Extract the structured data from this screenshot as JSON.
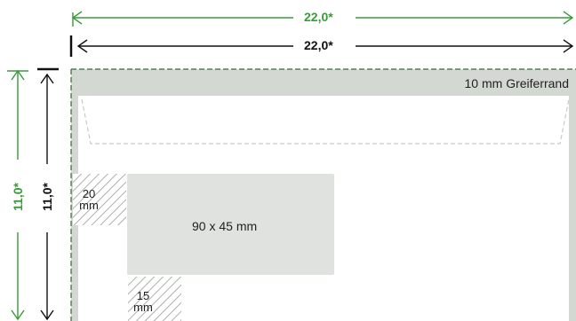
{
  "dimensions": {
    "top_outer_width": "22,0*",
    "top_inner_width": "22,0*",
    "left_outer_height": "11,0*",
    "left_inner_height": "11,0*"
  },
  "envelope": {
    "gripper_margin_label": "10 mm Greiferrand"
  },
  "zones": {
    "address_window": "90 x 45 mm",
    "left_margin_value": "20",
    "left_margin_unit": "mm",
    "bottom_margin_value": "15",
    "bottom_margin_unit": "mm"
  },
  "colors": {
    "green": "#3a9a3a",
    "black": "#111111",
    "gray_fill": "#d4d8d3",
    "window_fill": "#dfe2de"
  }
}
